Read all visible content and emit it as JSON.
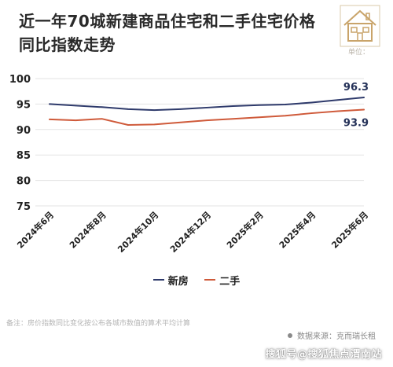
{
  "title": "近一年70城新建商品住宅和二手住宅价格同比指数走势",
  "unit_label": "单位：",
  "note": "备注：房价指数同比变化按公布各城市数值的算术平均计算",
  "source": "数据来源：克而瑞长租",
  "watermark": "搜狐号@搜狐焦点渭南站",
  "logo_icon": "house-icon",
  "colors": {
    "new_homes": "#2e3a6b",
    "second_hand": "#cf5a3a",
    "grid": "#e3e3e3",
    "end_label_new": "#243158",
    "end_label_second": "#243158"
  },
  "chart_data": {
    "type": "line",
    "title": "近一年70城新建商品住宅和二手住宅价格同比指数走势",
    "xlabel": "",
    "ylabel": "",
    "x": [
      "2024年6月",
      "2024年7月",
      "2024年8月",
      "2024年9月",
      "2024年10月",
      "2024年11月",
      "2024年12月",
      "2025年1月",
      "2025年2月",
      "2025年3月",
      "2025年4月",
      "2025年5月",
      "2025年6月"
    ],
    "tick_labels": [
      "2024年6月",
      "2024年8月",
      "2024年10月",
      "2024年12月",
      "2025年2月",
      "2025年4月",
      "2025年6月"
    ],
    "yticks": [
      75,
      80,
      85,
      90,
      95,
      100
    ],
    "ylim": [
      75,
      100
    ],
    "grid": "horizontal",
    "legend_position": "bottom",
    "series": [
      {
        "name": "新房",
        "values": [
          95.0,
          94.7,
          94.4,
          94.0,
          93.8,
          94.0,
          94.3,
          94.6,
          94.8,
          94.9,
          95.3,
          95.8,
          96.3
        ],
        "end_label": "96.3"
      },
      {
        "name": "二手",
        "values": [
          92.0,
          91.8,
          92.1,
          90.9,
          91.0,
          91.4,
          91.8,
          92.1,
          92.4,
          92.7,
          93.2,
          93.6,
          93.9
        ],
        "end_label": "93.9"
      }
    ]
  }
}
